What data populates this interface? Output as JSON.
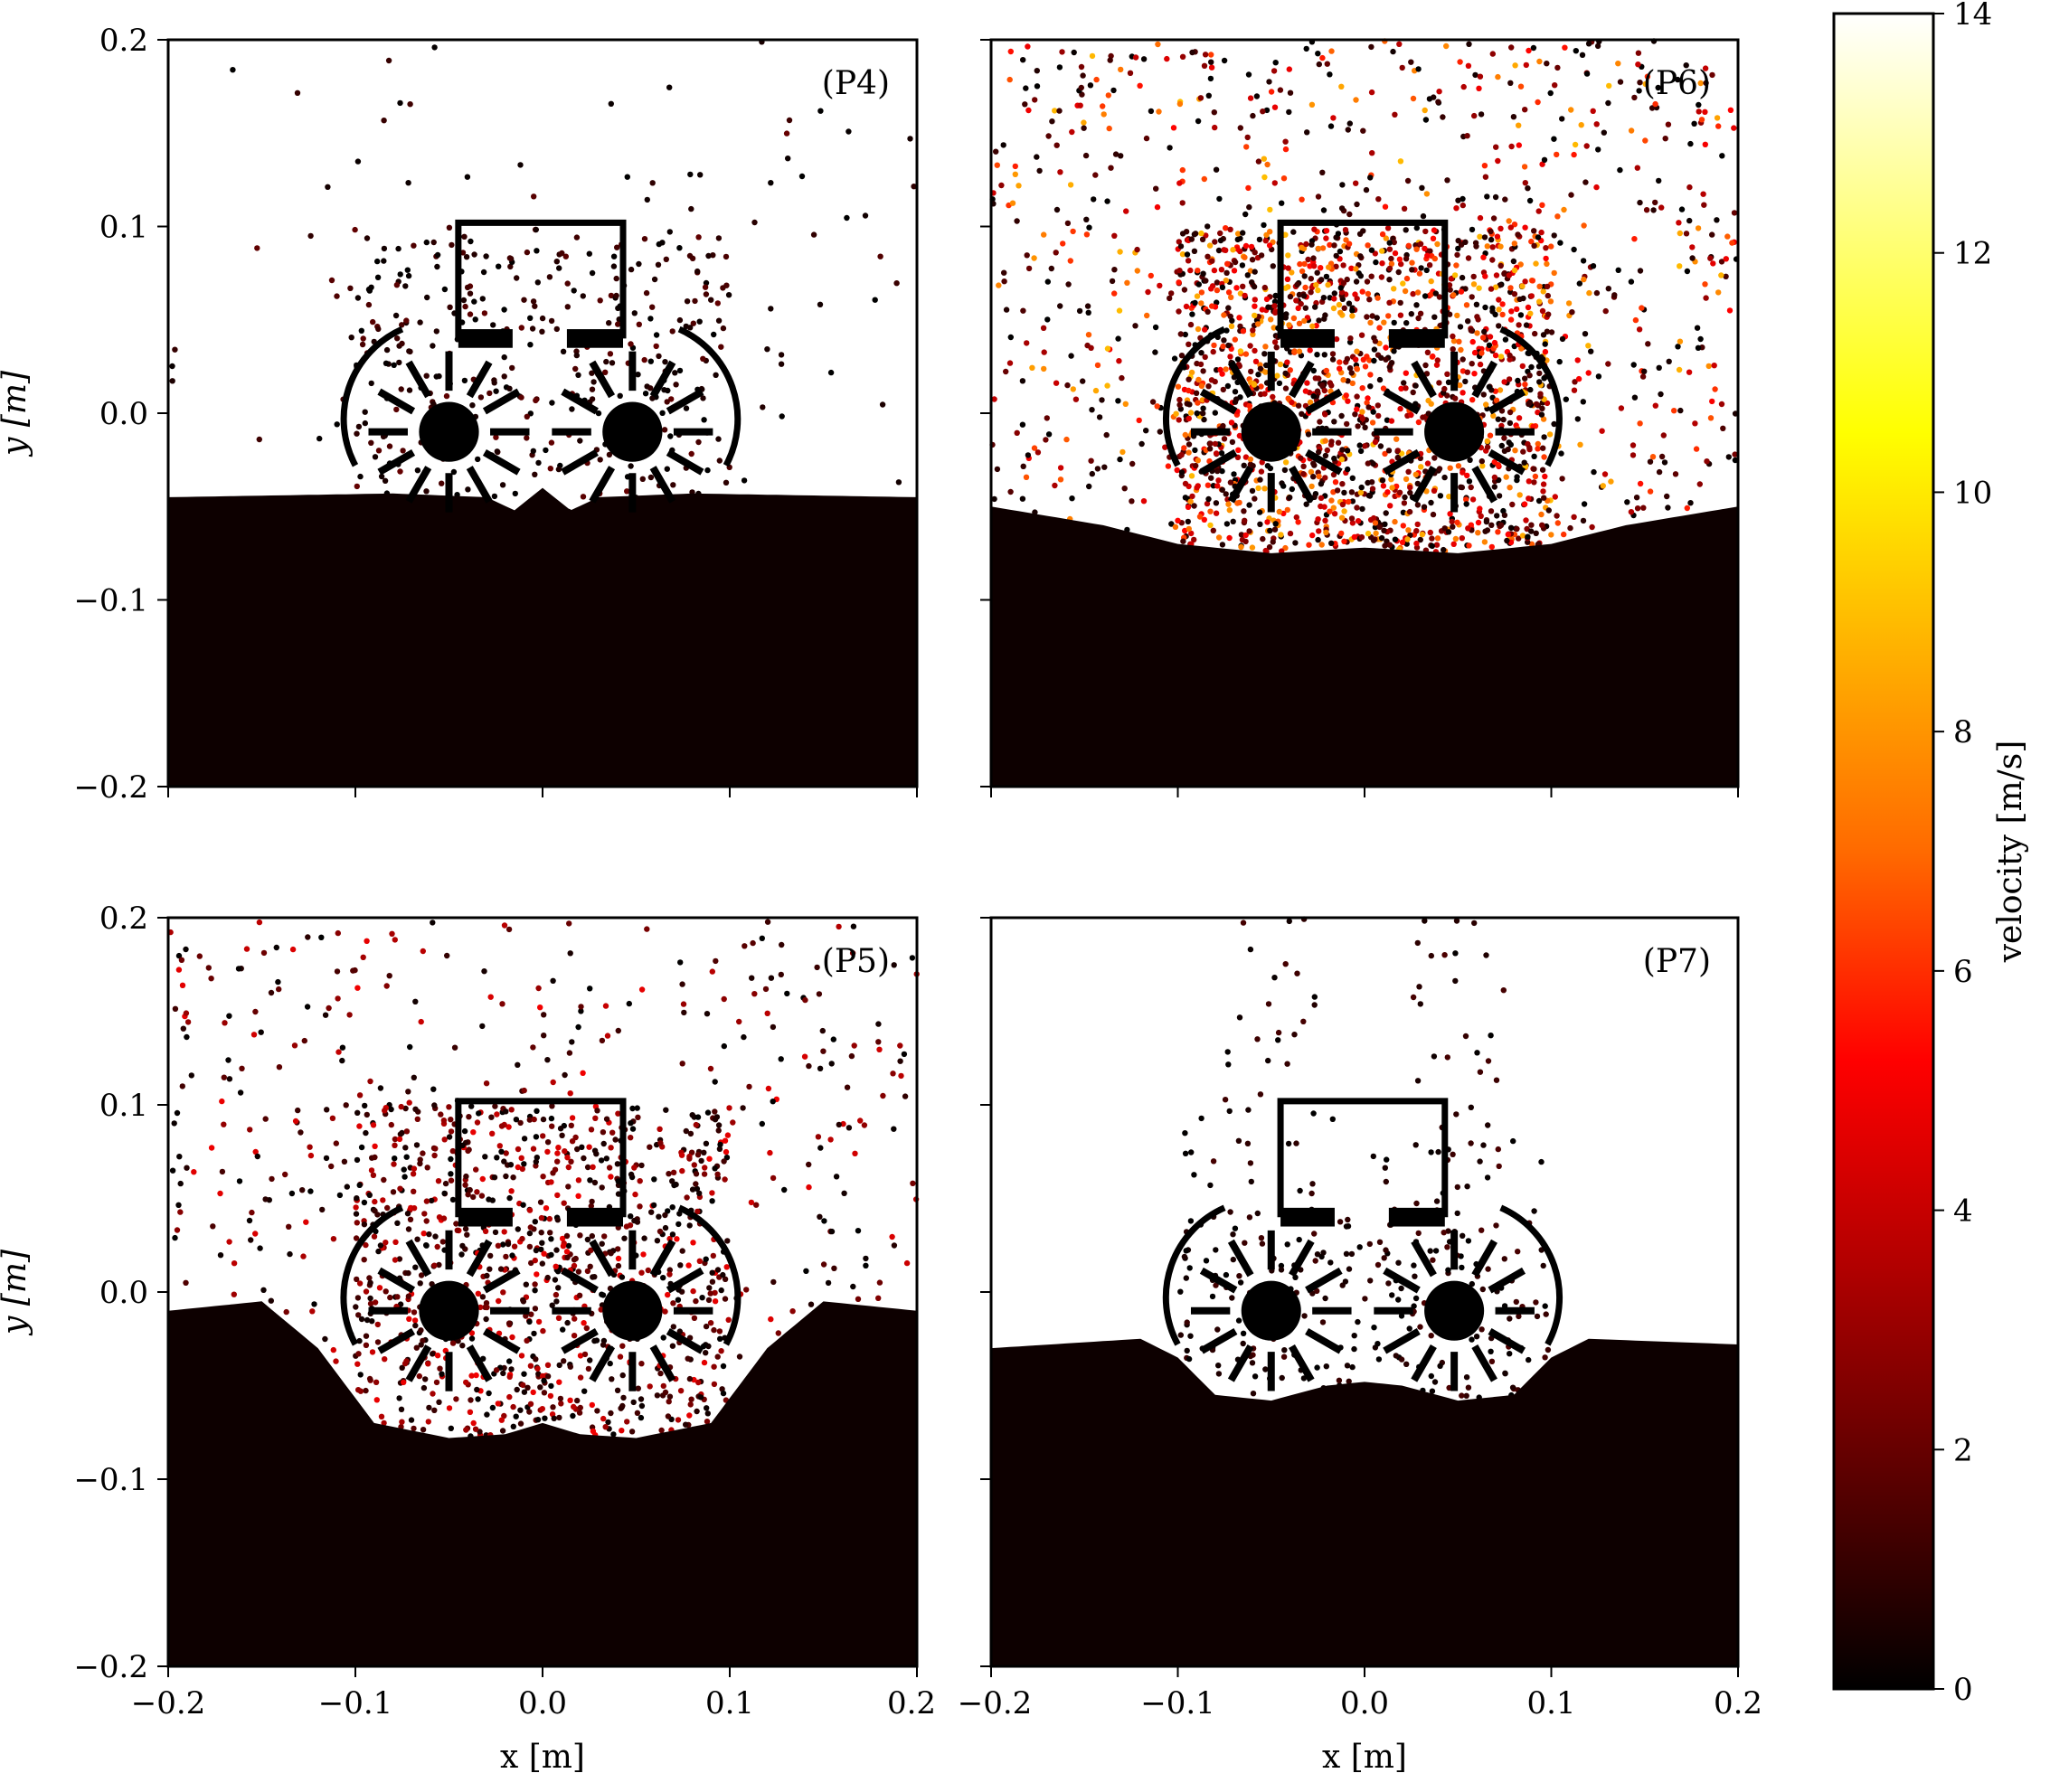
{
  "figure": {
    "colorbar_label": "velocity [m/s]",
    "x_axis_label": "x [m]",
    "y_axis_label": "y [m]"
  },
  "chart_data": [
    {
      "type": "scatter",
      "panel": "(P4)",
      "xlim": [
        -0.2,
        0.2
      ],
      "ylim": [
        -0.2,
        0.2
      ],
      "x_ticks": [
        "",
        "",
        "",
        "",
        ""
      ],
      "y_ticks": [
        "−0.2",
        "−0.1",
        "0.0",
        "0.1",
        "0.2"
      ],
      "xlabel": "",
      "ylabel": "y [m]",
      "surface": {
        "x": [
          -0.2,
          -0.08,
          -0.03,
          -0.015,
          0.0,
          0.015,
          0.03,
          0.08,
          0.2
        ],
        "y": [
          -0.045,
          -0.043,
          -0.045,
          -0.052,
          -0.04,
          -0.052,
          -0.045,
          -0.043,
          -0.045
        ]
      },
      "scatter_level": "low",
      "max_velocity": 2
    },
    {
      "type": "scatter",
      "panel": "(P6)",
      "xlim": [
        -0.2,
        0.2
      ],
      "ylim": [
        -0.2,
        0.2
      ],
      "x_ticks": [
        "",
        "",
        "",
        "",
        ""
      ],
      "y_ticks": [
        "",
        "",
        "",
        "",
        ""
      ],
      "xlabel": "",
      "ylabel": "",
      "surface": {
        "x": [
          -0.2,
          -0.17,
          -0.14,
          -0.1,
          -0.05,
          0.0,
          0.05,
          0.1,
          0.14,
          0.17,
          0.2
        ],
        "y": [
          -0.05,
          -0.055,
          -0.06,
          -0.07,
          -0.075,
          -0.072,
          -0.075,
          -0.07,
          -0.06,
          -0.055,
          -0.05
        ]
      },
      "scatter_level": "high",
      "max_velocity": 9
    },
    {
      "type": "scatter",
      "panel": "(P5)",
      "xlim": [
        -0.2,
        0.2
      ],
      "ylim": [
        -0.2,
        0.2
      ],
      "x_ticks": [
        "−0.2",
        "−0.1",
        "0.0",
        "0.1",
        "0.2"
      ],
      "y_ticks": [
        "−0.2",
        "−0.1",
        "0.0",
        "0.1",
        "0.2"
      ],
      "xlabel": "x [m]",
      "ylabel": "y [m]",
      "surface": {
        "x": [
          -0.2,
          -0.15,
          -0.12,
          -0.09,
          -0.05,
          -0.02,
          0.0,
          0.02,
          0.05,
          0.09,
          0.12,
          0.15,
          0.2
        ],
        "y": [
          -0.01,
          -0.005,
          -0.03,
          -0.07,
          -0.078,
          -0.076,
          -0.07,
          -0.076,
          -0.078,
          -0.07,
          -0.03,
          -0.005,
          -0.01
        ]
      },
      "scatter_level": "medium",
      "max_velocity": 5
    },
    {
      "type": "scatter",
      "panel": "(P7)",
      "xlim": [
        -0.2,
        0.2
      ],
      "ylim": [
        -0.2,
        0.2
      ],
      "x_ticks": [
        "−0.2",
        "−0.1",
        "0.0",
        "0.1",
        "0.2"
      ],
      "y_ticks": [
        "",
        "",
        "",
        "",
        ""
      ],
      "xlabel": "x [m]",
      "ylabel": "",
      "surface": {
        "x": [
          -0.2,
          -0.12,
          -0.1,
          -0.08,
          -0.05,
          -0.02,
          0.0,
          0.02,
          0.05,
          0.08,
          0.1,
          0.12,
          0.2
        ],
        "y": [
          -0.03,
          -0.025,
          -0.035,
          -0.055,
          -0.058,
          -0.05,
          -0.048,
          -0.05,
          -0.058,
          -0.055,
          -0.035,
          -0.025,
          -0.028
        ]
      },
      "scatter_level": "low",
      "max_velocity": 1.5
    }
  ],
  "colorbar": {
    "type": "colorbar",
    "colormap": "hot",
    "range": [
      0,
      14
    ],
    "ticks": [
      "0",
      "2",
      "4",
      "6",
      "8",
      "10",
      "12",
      "14"
    ],
    "stops": [
      "#000000",
      "#5a0000",
      "#b00000",
      "#ff0000",
      "#ff6a00",
      "#ffb400",
      "#ffff00",
      "#ffff80",
      "#ffffff"
    ]
  }
}
